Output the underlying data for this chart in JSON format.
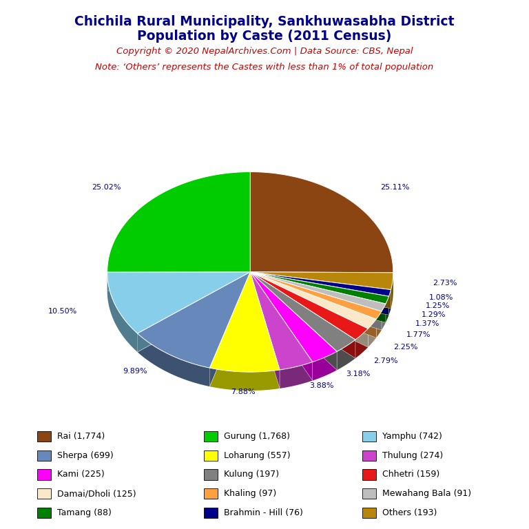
{
  "title_line1": "Chichila Rural Municipality, Sankhuwasabha District",
  "title_line2": "Population by Caste (2011 Census)",
  "copyright": "Copyright © 2020 NepalArchives.Com | Data Source: CBS, Nepal",
  "note": "Note: ‘Others’ represents the Castes with less than 1% of total population",
  "slices": [
    {
      "label": "Rai (1,774)",
      "value": 1774,
      "color": "#8B4513",
      "pct": "25.11%"
    },
    {
      "label": "Others (193)",
      "value": 193,
      "color": "#B8860B",
      "pct": "2.73%"
    },
    {
      "label": "Brahmin - Hill (76)",
      "value": 76,
      "color": "#00008B",
      "pct": "1.08%"
    },
    {
      "label": "Tamang (88)",
      "value": 88,
      "color": "#008000",
      "pct": "1.25%"
    },
    {
      "label": "Mewahang Bala (91)",
      "value": 91,
      "color": "#BEBEBE",
      "pct": "1.29%"
    },
    {
      "label": "Khaling (97)",
      "value": 97,
      "color": "#FFA040",
      "pct": "1.37%"
    },
    {
      "label": "Damai/Dholi (125)",
      "value": 125,
      "color": "#FAE8C8",
      "pct": "1.77%"
    },
    {
      "label": "Chhetri (159)",
      "value": 159,
      "color": "#E81818",
      "pct": "2.25%"
    },
    {
      "label": "Kulung (197)",
      "value": 197,
      "color": "#808080",
      "pct": "2.79%"
    },
    {
      "label": "Kami (225)",
      "value": 225,
      "color": "#FF00FF",
      "pct": "3.18%"
    },
    {
      "label": "Thulung (274)",
      "value": 274,
      "color": "#CC44CC",
      "pct": "3.88%"
    },
    {
      "label": "Loharung (557)",
      "value": 557,
      "color": "#FFFF00",
      "pct": "7.88%"
    },
    {
      "label": "Sherpa (699)",
      "value": 699,
      "color": "#6688BB",
      "pct": "9.89%"
    },
    {
      "label": "Yamphu (742)",
      "value": 742,
      "color": "#87CEEB",
      "pct": "10.50%"
    },
    {
      "label": "Gurung (1,768)",
      "value": 1768,
      "color": "#00CC00",
      "pct": "25.02%"
    }
  ],
  "legend_order": [
    {
      "label": "Rai (1,774)",
      "color": "#8B4513"
    },
    {
      "label": "Gurung (1,768)",
      "color": "#00CC00"
    },
    {
      "label": "Yamphu (742)",
      "color": "#87CEEB"
    },
    {
      "label": "Sherpa (699)",
      "color": "#6688BB"
    },
    {
      "label": "Loharung (557)",
      "color": "#FFFF00"
    },
    {
      "label": "Thulung (274)",
      "color": "#CC44CC"
    },
    {
      "label": "Kami (225)",
      "color": "#FF00FF"
    },
    {
      "label": "Kulung (197)",
      "color": "#808080"
    },
    {
      "label": "Chhetri (159)",
      "color": "#E81818"
    },
    {
      "label": "Damai/Dholi (125)",
      "color": "#FAE8C8"
    },
    {
      "label": "Khaling (97)",
      "color": "#FFA040"
    },
    {
      "label": "Mewahang Bala (91)",
      "color": "#BEBEBE"
    },
    {
      "label": "Tamang (88)",
      "color": "#008000"
    },
    {
      "label": "Brahmin - Hill (76)",
      "color": "#00008B"
    },
    {
      "label": "Others (193)",
      "color": "#B8860B"
    }
  ],
  "title_color": "#00008B",
  "copyright_color": "#CC0000",
  "note_color": "#CC0000",
  "label_color": "#00008B"
}
